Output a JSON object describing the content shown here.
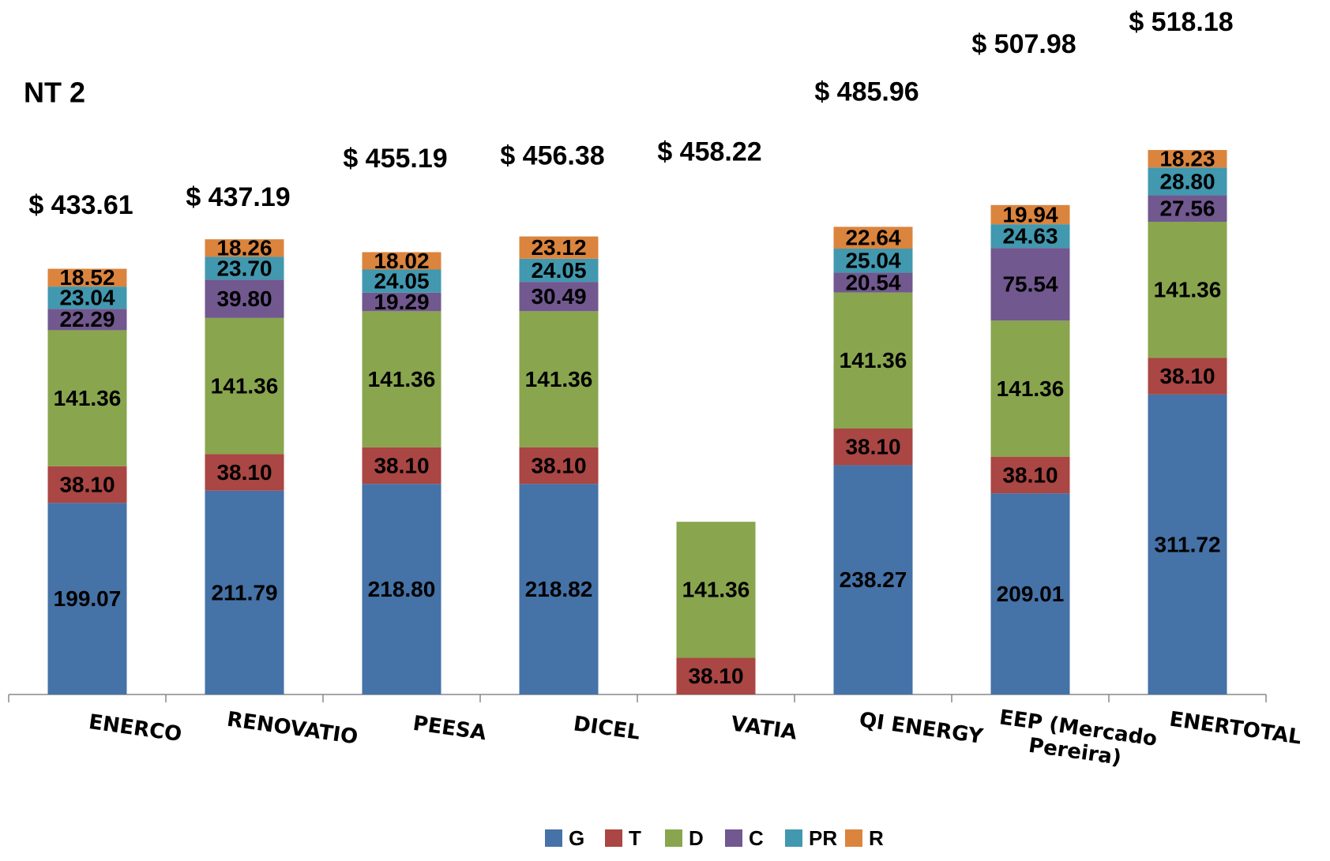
{
  "chart_data": {
    "type": "stacked_bar",
    "title": "NT 2",
    "categories": [
      "ENERCO",
      "RENOVATIO",
      "PEESA",
      "DICEL",
      "VATIA",
      "QI ENERGY",
      "EEP (Mercado Pereira)",
      "ENERTOTAL"
    ],
    "series": [
      {
        "name": "G",
        "color": "#4572a7",
        "values": [
          199.07,
          211.79,
          218.8,
          218.82,
          null,
          238.27,
          209.01,
          311.72
        ],
        "value_labels": [
          "199.07",
          "211.79",
          "218.80",
          "218.82",
          null,
          "238.27",
          "209.01",
          "311.72"
        ]
      },
      {
        "name": "T",
        "color": "#aa4643",
        "values": [
          38.1,
          38.1,
          38.1,
          38.1,
          38.1,
          38.1,
          38.1,
          38.1
        ],
        "value_labels": [
          "38.10",
          "38.10",
          "38.10",
          "38.10",
          "38.10",
          "38.10",
          "38.10",
          "38.10"
        ]
      },
      {
        "name": "D",
        "color": "#89a54e",
        "values": [
          141.36,
          141.36,
          141.36,
          141.36,
          141.36,
          141.36,
          141.36,
          141.36
        ],
        "value_labels": [
          "141.36",
          "141.36",
          "141.36",
          "141.36",
          "141.36",
          "141.36",
          "141.36",
          "141.36"
        ]
      },
      {
        "name": "C",
        "color": "#71588f",
        "values": [
          22.29,
          39.8,
          19.29,
          30.49,
          null,
          20.54,
          75.54,
          27.56
        ],
        "value_labels": [
          "22.29",
          "39.80",
          "19.29",
          "30.49",
          null,
          "20.54",
          "75.54",
          "27.56"
        ]
      },
      {
        "name": "PR",
        "color": "#4198af",
        "values": [
          23.04,
          23.7,
          24.05,
          24.05,
          null,
          25.04,
          24.63,
          28.8
        ],
        "value_labels": [
          "23.04",
          "23.70",
          "24.05",
          "24.05",
          null,
          "25.04",
          "24.63",
          "28.80"
        ]
      },
      {
        "name": "R",
        "color": "#db843d",
        "values": [
          18.52,
          18.26,
          18.02,
          23.12,
          null,
          22.64,
          19.94,
          18.23
        ],
        "value_labels": [
          "18.52",
          "18.26",
          "18.02",
          "23.12",
          null,
          "22.64",
          "19.94",
          "18.23"
        ]
      }
    ],
    "totals": {
      "values": [
        433.61,
        437.19,
        455.19,
        456.38,
        458.22,
        485.96,
        507.98,
        518.18
      ],
      "value_labels": [
        "$ 433.61",
        "$ 437.19",
        "$ 455.19",
        "$ 456.38",
        "$ 458.22",
        "$ 485.96",
        "$ 507.98",
        "$ 518.18"
      ]
    },
    "ylim": [
      0,
      720
    ],
    "legend": "bottom"
  }
}
